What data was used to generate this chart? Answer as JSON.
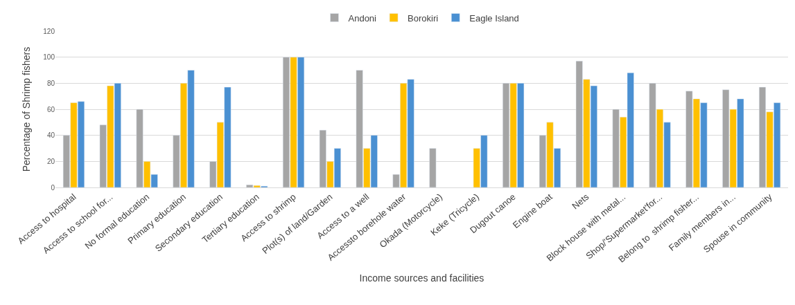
{
  "chart_data": {
    "type": "bar",
    "xlabel": "Income sources and facilities",
    "ylabel": "Percentage of Shrimp fishers",
    "categories": [
      "Access to hospital",
      "Access to school for...",
      "No formal education",
      "Primary education",
      "Secondary education",
      "Tertiary education",
      "Access to shrimp",
      "Plot(s) of land/Garden",
      "Access to a well",
      "Accessto borehole water",
      "Okada (Motorcycle)",
      "Keke (Tricycle)",
      "Dugout canoe",
      "Engine boat",
      "Nets",
      "Block house with metal...",
      "Shop/'Supermarket'for...",
      "Belong to  shrimp fisher...",
      "Family members in...",
      "Spouse in community"
    ],
    "series": [
      {
        "name": "Andoni",
        "color": "#a5a5a5",
        "values": [
          40,
          48,
          60,
          40,
          20,
          2,
          100,
          44,
          90,
          10,
          30,
          null,
          80,
          40,
          97,
          60,
          80,
          74,
          75,
          77
        ]
      },
      {
        "name": "Borokiri",
        "color": "#ffc000",
        "values": [
          65,
          78,
          20,
          80,
          50,
          1.5,
          100,
          20,
          30,
          80,
          null,
          30,
          80,
          50,
          83,
          54,
          60,
          68,
          60,
          58
        ]
      },
      {
        "name": "Eagle Island",
        "color": "#4a90d2",
        "values": [
          66,
          80,
          10,
          90,
          77,
          1,
          100,
          30,
          40,
          83,
          null,
          40,
          80,
          30,
          78,
          88,
          50,
          65,
          68,
          65
        ]
      }
    ],
    "ylim": [
      0,
      120
    ],
    "yticks": [
      0,
      20,
      40,
      60,
      80,
      100,
      120
    ],
    "grid": "y",
    "legend": "top"
  }
}
